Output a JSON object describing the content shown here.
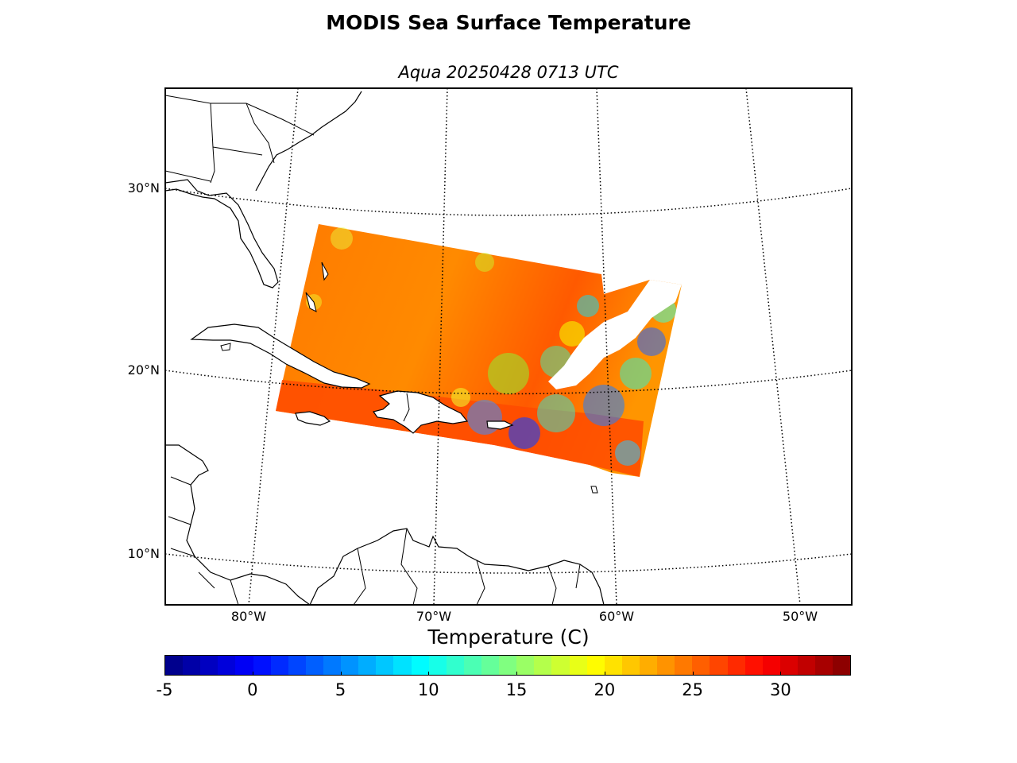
{
  "title": "MODIS Sea Surface Temperature",
  "subtitle": "Aqua 20250428 0713 UTC",
  "map": {
    "lat_labels": [
      "30°N",
      "20°N",
      "10°N"
    ],
    "lon_labels": [
      "80°W",
      "70°W",
      "60°W",
      "50°W"
    ],
    "land_color": "#ffffff",
    "coastline_color": "#000000",
    "graticule_style": "dotted"
  },
  "colorbar": {
    "label": "Temperature (C)",
    "colormap": "jet",
    "min": -5,
    "max": 34,
    "ticks": [
      "-5",
      "0",
      "5",
      "10",
      "15",
      "20",
      "25",
      "30"
    ],
    "orientation": "horizontal"
  },
  "chart_data": {
    "type": "heatmap",
    "title": "MODIS Sea Surface Temperature",
    "subtitle": "Aqua 20250428 0713 UTC",
    "variable": "Temperature (C)",
    "value_range": [
      -5,
      34
    ],
    "lat_range": [
      7,
      35
    ],
    "lon_range": [
      -85,
      -48
    ]
  }
}
